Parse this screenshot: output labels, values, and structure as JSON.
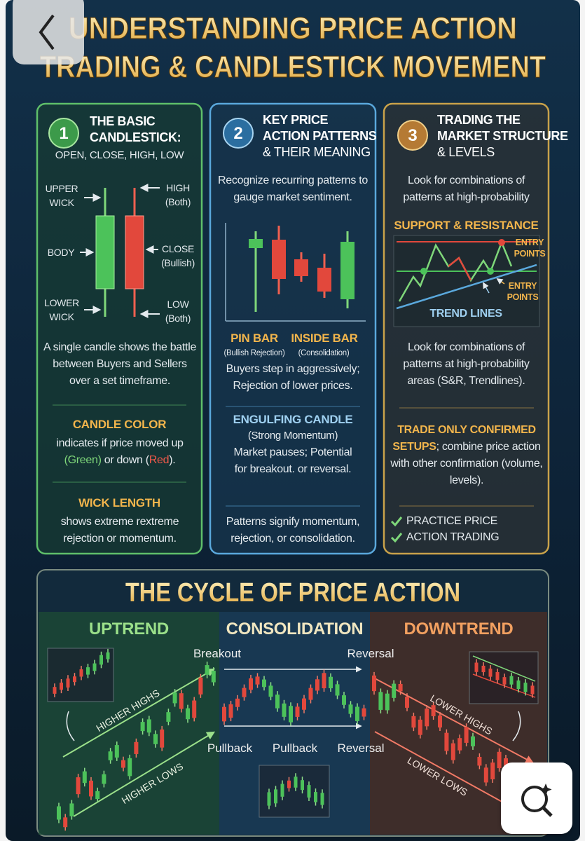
{
  "header": {
    "title": [
      "UNDERSTANDING PRICE ACTION",
      "TRADING & CANDLESTICK MOVEMENT"
    ]
  },
  "panels": [
    {
      "number": "1",
      "title": [
        "THE BASIC",
        "CANDLESTICK:"
      ],
      "subtitle": "OPEN, CLOSE, HIGH, LOW",
      "diagram_labels": {
        "upper_wick": [
          "UPPER",
          "WICK"
        ],
        "body": "BODY",
        "lower_wick": [
          "LOWER",
          "WICK"
        ],
        "high": [
          "HIGH",
          "(Both)"
        ],
        "close": [
          "CLOSE",
          "(Bullish)"
        ],
        "low": [
          "LOW",
          "(Both)"
        ]
      },
      "text": "A single candle shows the battle between Buyers and Sellers over a set timeframe.",
      "sections": [
        {
          "heading": "CANDLE COLOR",
          "text_parts": [
            "indicates if price moved up",
            "(Green)",
            "or down (",
            "Red",
            ")."
          ]
        },
        {
          "heading": "WICK LENGTH",
          "text": "shows extreme rextreme rejection or momentum."
        }
      ]
    },
    {
      "number": "2",
      "title": [
        "KEY PRICE",
        "ACTION PATTERNS",
        "& THEIR MEANING"
      ],
      "text": "Recognize recurring patterns to gauge market sentiment.",
      "patterns": [
        {
          "name": "PIN BAR",
          "note": "(Bullish Rejection)"
        },
        {
          "name": "INSIDE BAR",
          "note": "(Consolidation)"
        }
      ],
      "pattern_text": "Buyers step in aggressively; Rejection of lower prices.",
      "sections": [
        {
          "heading": "ENGULFING CANDLE",
          "note": "(Strong Momentum)",
          "text": "Market pauses; Potential for breakout. or reversal."
        }
      ],
      "footer": "Patterns signify momentum, rejection, or consolidation."
    },
    {
      "number": "3",
      "title": [
        "TRADING THE",
        "MARKET STRUCTURE",
        "& LEVELS"
      ],
      "text": "Look for combinations of patterns at high-probability",
      "chart_title": "SUPPORT & RESISTANCE",
      "chart_labels": {
        "entry_top": [
          "ENTRY",
          "POINTS"
        ],
        "entry_bottom": [
          "ENTRY",
          "POINTS"
        ],
        "trend": "TREND LINES"
      },
      "text2": "Look for combinations of patterns at high-probability areas (S&R, Trendlines).",
      "sections": [
        {
          "heading": "TRADE ONLY CONFIRMED SETUPS",
          "text": "; combine price action with other confirmation (volume, levels)."
        }
      ],
      "checklist": [
        "PRACTICE PRICE",
        "ACTION TRADING"
      ]
    }
  ],
  "cycle": {
    "title": "THE CYCLE OF PRICE ACTION",
    "phases": [
      "UPTREND",
      "CONSOLIDATION",
      "DOWNTREND"
    ],
    "labels": {
      "breakout": "Breakout",
      "reversal_top": "Reversal",
      "pullback_left": "Pullback",
      "pullback_mid": "Pullback",
      "reversal_bottom": "Reversal",
      "higher_highs": "HIGHER HIGHS",
      "higher_lows": "HIGHER LOWS",
      "lower_highs": "LOWER HIGHS",
      "lower_lows": "LOWER LOWS"
    }
  }
}
